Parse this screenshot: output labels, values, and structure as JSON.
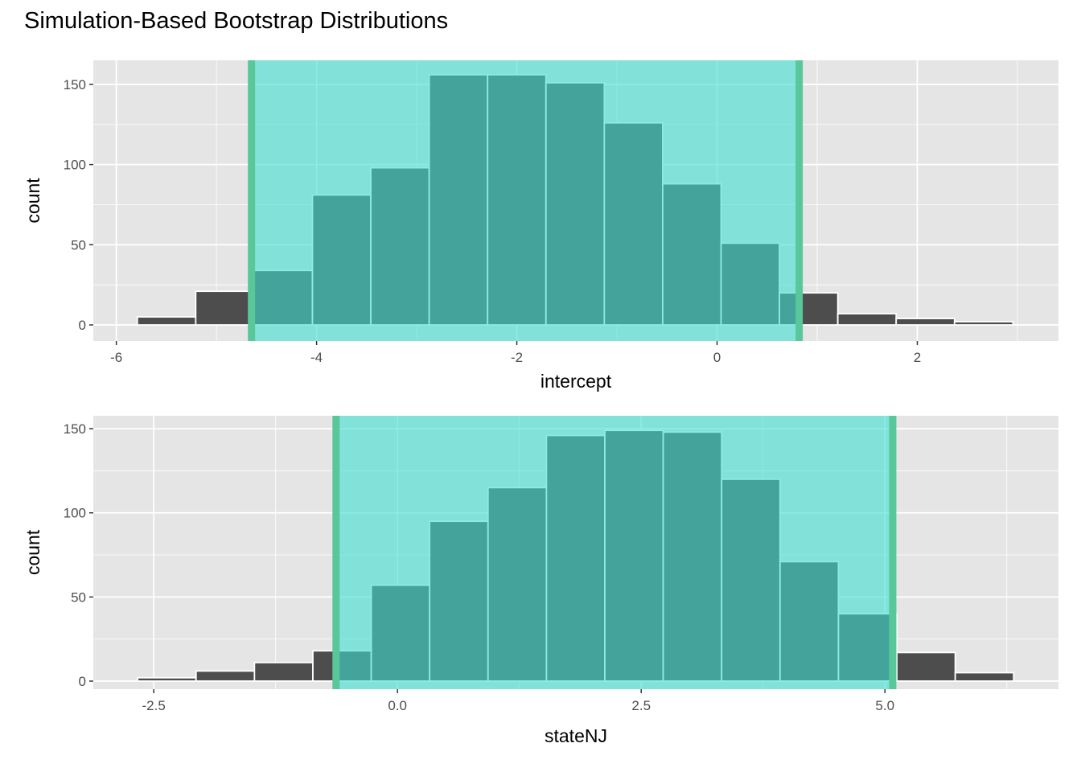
{
  "chart_data": {
    "title": "Simulation-Based Bootstrap Distributions",
    "panels": [
      {
        "type": "bar",
        "subtype": "histogram",
        "xlabel": "intercept",
        "ylabel": "count",
        "xlim": [
          -6.23,
          3.41
        ],
        "ylim": [
          -10,
          165
        ],
        "xticks": [
          -6,
          -4,
          -2,
          0,
          2
        ],
        "xtick_labels": [
          "-6",
          "-4",
          "-2",
          "0",
          "2"
        ],
        "xminor": [
          -5,
          -3,
          -1,
          1,
          3
        ],
        "yticks": [
          0,
          50,
          100,
          150
        ],
        "ytick_labels": [
          "0",
          "50",
          "100",
          "150"
        ],
        "yminor": [
          25,
          75,
          125
        ],
        "bin_start": -5.79,
        "bin_width": 0.583,
        "values": [
          5,
          21,
          34,
          81,
          98,
          156,
          156,
          151,
          126,
          88,
          51,
          20,
          7,
          4,
          2
        ],
        "ci": [
          -4.65,
          0.82
        ],
        "grid": true
      },
      {
        "type": "bar",
        "subtype": "histogram",
        "xlabel": "stateNJ",
        "ylabel": "count",
        "xlim": [
          -3.12,
          6.78
        ],
        "ylim": [
          -4.8,
          157.7
        ],
        "xticks": [
          -2.5,
          0,
          2.5,
          5
        ],
        "xtick_labels": [
          "-2.5",
          "0.0",
          "2.5",
          "5.0"
        ],
        "xminor": [
          -1.25,
          1.25,
          3.75,
          6.25
        ],
        "yticks": [
          0,
          50,
          100,
          150
        ],
        "ytick_labels": [
          "0",
          "50",
          "100",
          "150"
        ],
        "yminor": [
          25,
          75,
          125
        ],
        "bin_start": -2.665,
        "bin_width": 0.599,
        "values": [
          2,
          6,
          11,
          18,
          57,
          95,
          115,
          146,
          149,
          148,
          120,
          71,
          40,
          17,
          5
        ],
        "ci": [
          -0.63,
          5.08
        ],
        "grid": true
      }
    ],
    "colors": {
      "panel_bg": "#e5e5e5",
      "bar_fill": "#4d4d4d",
      "bar_outline": "#ffffff",
      "ci_fill": "#40e0d0",
      "ci_line": "#5ac79a"
    }
  }
}
